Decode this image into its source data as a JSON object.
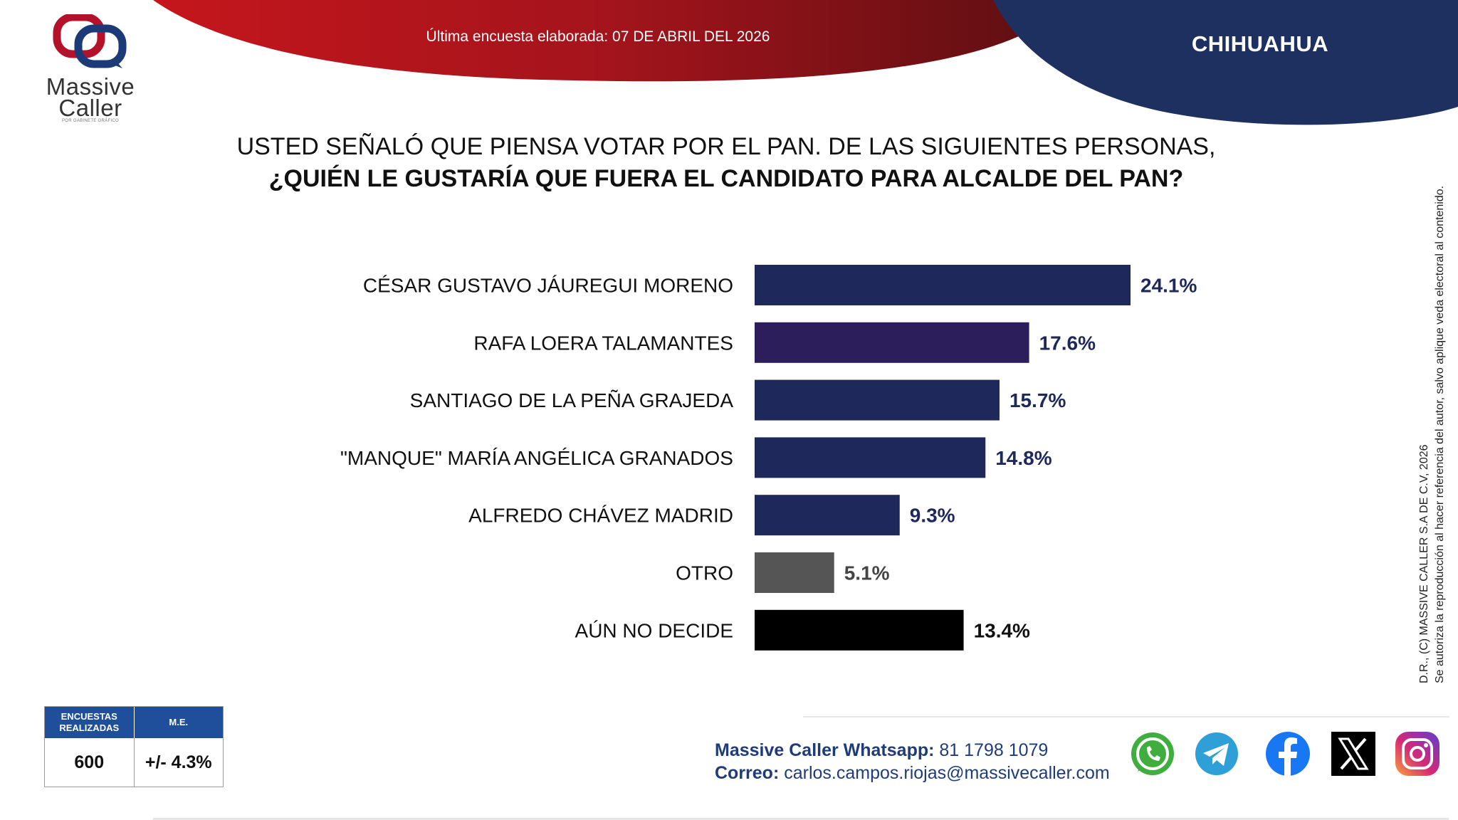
{
  "header": {
    "survey_date": "Última encuesta elaborada: 07 DE ABRIL DEL 2026",
    "state": "CHIHUAHUA"
  },
  "logo": {
    "word1": "Massive",
    "word2": "Caller",
    "tagline": "POR GABINETE GRÁFICO"
  },
  "question": {
    "line1": "USTED SEÑALÓ QUE PIENSA VOTAR POR EL PAN. DE LAS SIGUIENTES PERSONAS,",
    "line2": "¿QUIÉN LE GUSTARÍA QUE FUERA EL CANDIDATO PARA ALCALDE DEL PAN?"
  },
  "chart_data": {
    "type": "bar",
    "orientation": "horizontal",
    "title": "¿QUIÉN LE GUSTARÍA QUE FUERA EL CANDIDATO PARA ALCALDE DEL PAN?",
    "categories": [
      "CÉSAR GUSTAVO JÁUREGUI MORENO",
      "RAFA LOERA TALAMANTES",
      "SANTIAGO DE LA PEÑA GRAJEDA",
      "\"MANQUE\" MARÍA ANGÉLICA GRANADOS",
      "ALFREDO CHÁVEZ MADRID",
      "OTRO",
      "AÚN NO DECIDE"
    ],
    "values": [
      24.1,
      17.6,
      15.7,
      14.8,
      9.3,
      5.1,
      13.4
    ],
    "value_labels": [
      "24.1%",
      "17.6%",
      "15.7%",
      "14.8%",
      "9.3%",
      "5.1%",
      "13.4%"
    ],
    "colors": [
      "#1f285a",
      "#2b1e5a",
      "#1f285a",
      "#1f285a",
      "#1f285a",
      "#555555",
      "#000000"
    ],
    "xlim": [
      0,
      26
    ],
    "xlabel": "",
    "ylabel": "",
    "grid": false,
    "legend": "none"
  },
  "copyright": {
    "line1": "D.R., (C) MASSIVE CALLER S.A DE C.V, 2026",
    "line2": "Se autoriza la reproducción al hacer referencia del autor, salvo aplique veda electoral al contenido."
  },
  "stats": {
    "col1_header": "ENCUESTAS REALIZADAS",
    "col2_header": "M.E.",
    "sample": "600",
    "margin": "+/- 4.3%"
  },
  "contact": {
    "whatsapp_label": "Massive Caller Whatsapp:",
    "whatsapp_number": "81 1798 1079",
    "email_label": "Correo:",
    "email": "carlos.campos.riojas@massivecaller.com"
  },
  "social_colors": {
    "whatsapp": "#3fae3f",
    "telegram": "#2f9fd8",
    "facebook": "#1877f2",
    "x": "#000000",
    "instagram": "#d62976"
  }
}
